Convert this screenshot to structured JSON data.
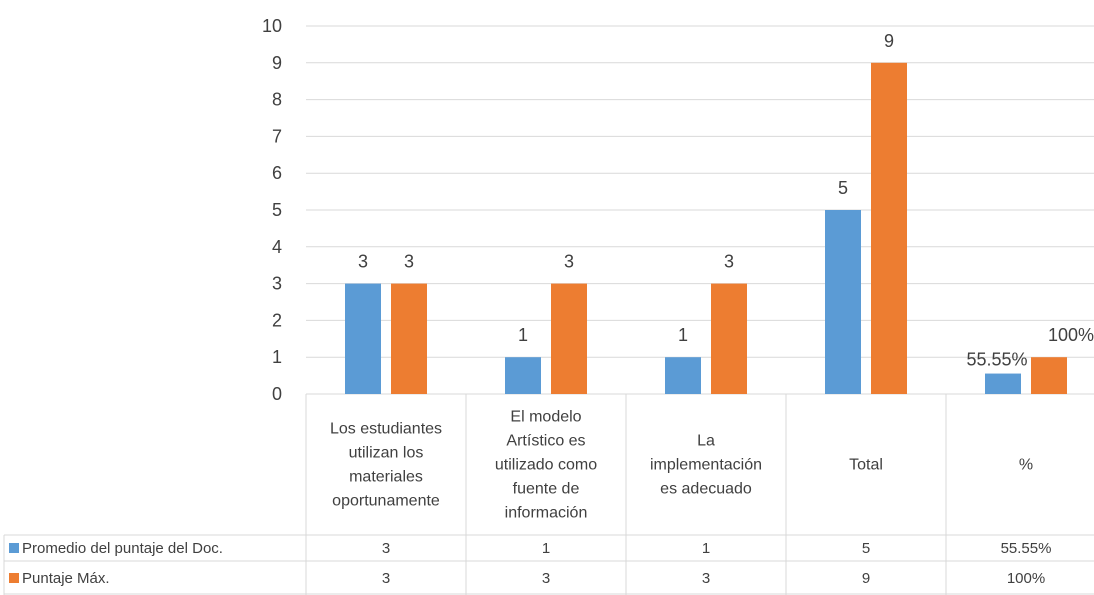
{
  "chart_data": {
    "type": "bar",
    "title": "",
    "xlabel": "",
    "ylabel": "",
    "ylim": [
      0,
      10
    ],
    "yticks": [
      0,
      1,
      2,
      3,
      4,
      5,
      6,
      7,
      8,
      9,
      10
    ],
    "grid": true,
    "legend": "bottom-left data table",
    "categories": [
      [
        "Los estudiantes",
        "utilizan los",
        "materiales",
        "oportunamente"
      ],
      [
        "El modelo",
        "Artístico es",
        "utilizado como",
        "fuente de",
        "información"
      ],
      [
        "La",
        "implementación",
        "es adecuado"
      ],
      [
        "Total"
      ],
      [
        "%"
      ]
    ],
    "series": [
      {
        "name": "Promedio del puntaje del Doc.",
        "color": "#5B9BD5",
        "values": [
          3,
          1,
          1,
          5,
          0.5555
        ],
        "labels": [
          "3",
          "1",
          "1",
          "5",
          "55.55%"
        ],
        "table": [
          "3",
          "1",
          "1",
          "5",
          "55.55%"
        ]
      },
      {
        "name": "Puntaje Máx.",
        "color": "#ED7D31",
        "values": [
          3,
          3,
          3,
          9,
          1
        ],
        "labels": [
          "3",
          "3",
          "3",
          "9",
          "100%"
        ],
        "table": [
          "3",
          "3",
          "3",
          "9",
          "100%"
        ]
      }
    ]
  }
}
